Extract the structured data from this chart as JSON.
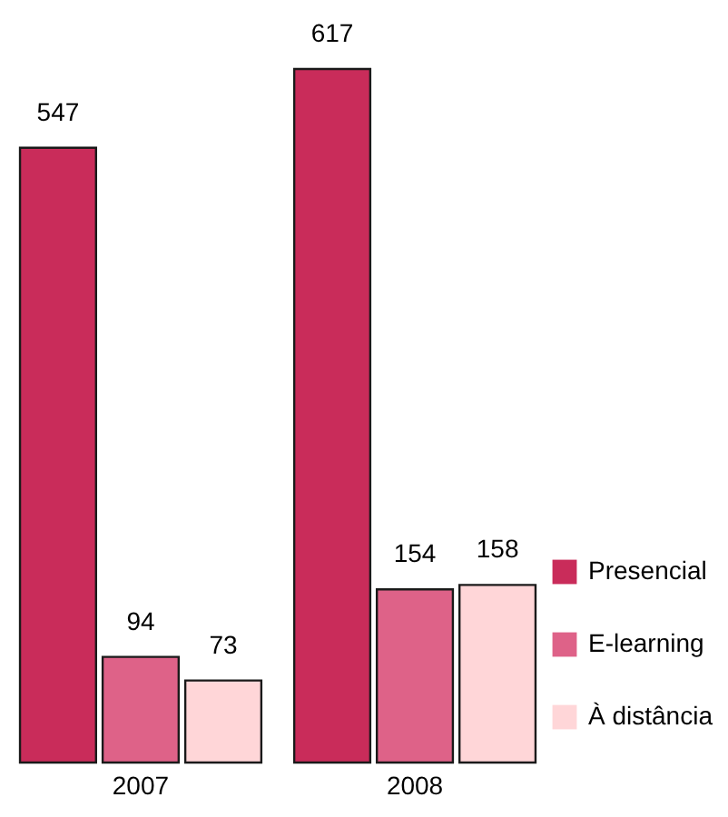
{
  "chart_data": {
    "type": "bar",
    "categories": [
      "2007",
      "2008"
    ],
    "series": [
      {
        "name": "Presencial",
        "color": "#c92c5a",
        "values": [
          547,
          617
        ]
      },
      {
        "name": "E-learning",
        "color": "#de6288",
        "values": [
          94,
          154
        ]
      },
      {
        "name": "À distância",
        "color": "#ffd6d8",
        "values": [
          73,
          158
        ]
      }
    ],
    "data_labels": true,
    "legend": "bottom right"
  }
}
